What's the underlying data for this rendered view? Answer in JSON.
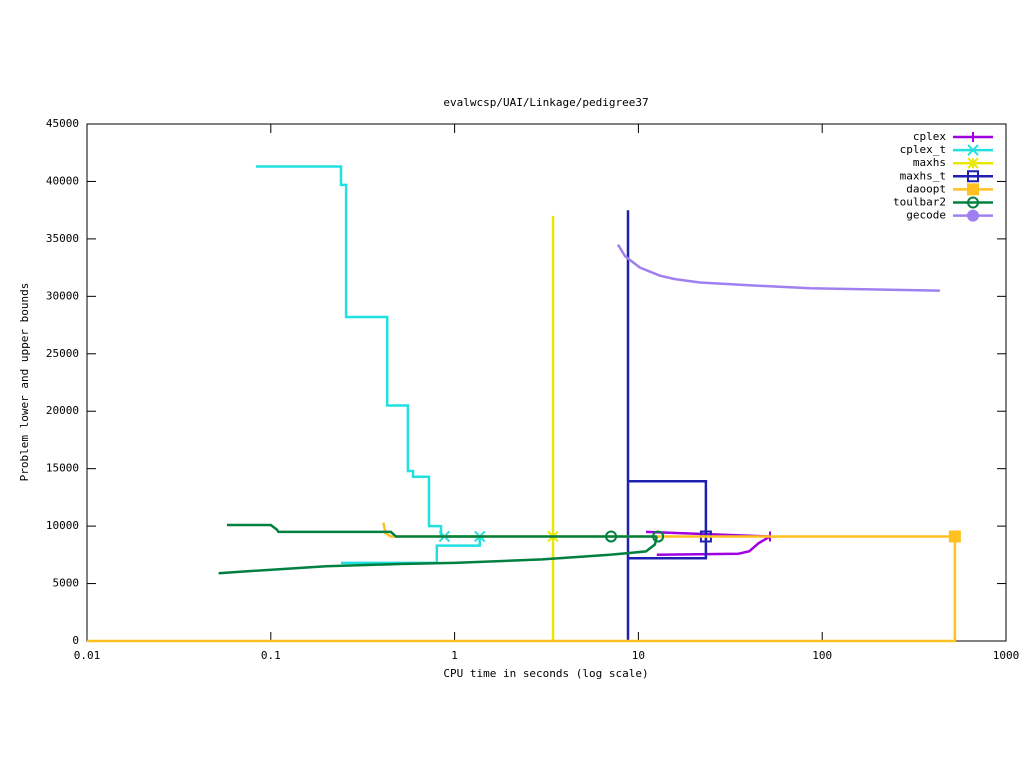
{
  "chart_data": {
    "type": "line",
    "title": "evalwcsp/UAI/Linkage/pedigree37",
    "xlabel": "CPU time in seconds (log scale)",
    "ylabel": "Problem lower and upper bounds",
    "xscale": "log",
    "xlim": [
      0.01,
      1000
    ],
    "xticks": [
      0.01,
      0.1,
      1,
      10,
      100,
      1000
    ],
    "ylim": [
      0,
      45000
    ],
    "yticks": [
      0,
      5000,
      10000,
      15000,
      20000,
      25000,
      30000,
      35000,
      40000,
      45000
    ],
    "legend": "top-right",
    "series": [
      {
        "name": "cplex",
        "color": "#a000e0",
        "marker": "plus",
        "x": [
          11,
          52,
          null,
          12.6,
          35,
          40,
          45,
          52
        ],
        "values": [
          9500,
          9100,
          null,
          7500,
          7600,
          7800,
          8500,
          9100
        ],
        "marker_x": [
          52
        ],
        "marker_values": [
          9100
        ]
      },
      {
        "name": "cplex_t",
        "color": "#20e0e0",
        "marker": "cross",
        "x": [
          0.083,
          0.241,
          0.241,
          0.257,
          0.257,
          0.43,
          0.43,
          0.557,
          0.557,
          0.594,
          0.594,
          0.726,
          0.726,
          0.843,
          0.843,
          1.45,
          null,
          0.241,
          0.8,
          0.8,
          1.37,
          1.37
        ],
        "values": [
          41300,
          41300,
          39700,
          39700,
          28200,
          28200,
          20500,
          20500,
          14800,
          14800,
          14300,
          14300,
          10000,
          10000,
          9100,
          9100,
          null,
          6800,
          6800,
          8300,
          8300,
          9100
        ],
        "marker_x": [
          0.88,
          1.37
        ],
        "marker_values": [
          9100,
          9100
        ]
      },
      {
        "name": "maxhs",
        "color": "#e8e800",
        "marker": "star",
        "x": [
          3.43,
          3.43
        ],
        "values": [
          0,
          37000
        ],
        "marker_x": [
          3.43
        ],
        "marker_values": [
          9100
        ]
      },
      {
        "name": "maxhs_t",
        "color": "#2020b0",
        "marker": "square",
        "x": [
          8.78,
          8.78,
          null,
          8.78,
          23.3,
          23.3,
          8.78
        ],
        "values": [
          0,
          37500,
          null,
          13900,
          13900,
          7200,
          7200
        ],
        "marker_x": [
          23.3
        ],
        "marker_values": [
          9100
        ]
      },
      {
        "name": "daoopt",
        "color": "#ffc020",
        "marker": "filledsquare",
        "x": [
          0.01,
          527,
          527,
          null,
          0.41,
          0.42,
          0.45,
          527
        ],
        "values": [
          0,
          0,
          9100,
          null,
          10300,
          9400,
          9100,
          9100
        ],
        "marker_x": [
          527
        ],
        "marker_values": [
          9100
        ]
      },
      {
        "name": "toulbar2",
        "color": "#008040",
        "marker": "circle",
        "x": [
          0.0578,
          0.1,
          0.108,
          0.11,
          0.45,
          0.48,
          12.6,
          null,
          0.052,
          0.08,
          0.2,
          0.5,
          1,
          3,
          7,
          11,
          12.3,
          12.6
        ],
        "values": [
          10100,
          10100,
          9700,
          9500,
          9500,
          9100,
          9100,
          null,
          5900,
          6100,
          6500,
          6700,
          6800,
          7100,
          7500,
          7800,
          8400,
          9100
        ],
        "marker_x": [
          7.1,
          12.8
        ],
        "marker_values": [
          9100,
          9100
        ]
      },
      {
        "name": "gecode",
        "color": "#a080f0",
        "marker": "filledcircle",
        "x": [
          7.74,
          8.45,
          10.2,
          13.1,
          15.8,
          21.6,
          35.7,
          85.9,
          437
        ],
        "values": [
          34500,
          33500,
          32500,
          31800,
          31500,
          31200,
          31000,
          30700,
          30500
        ],
        "marker_x": [],
        "marker_values": []
      }
    ]
  }
}
